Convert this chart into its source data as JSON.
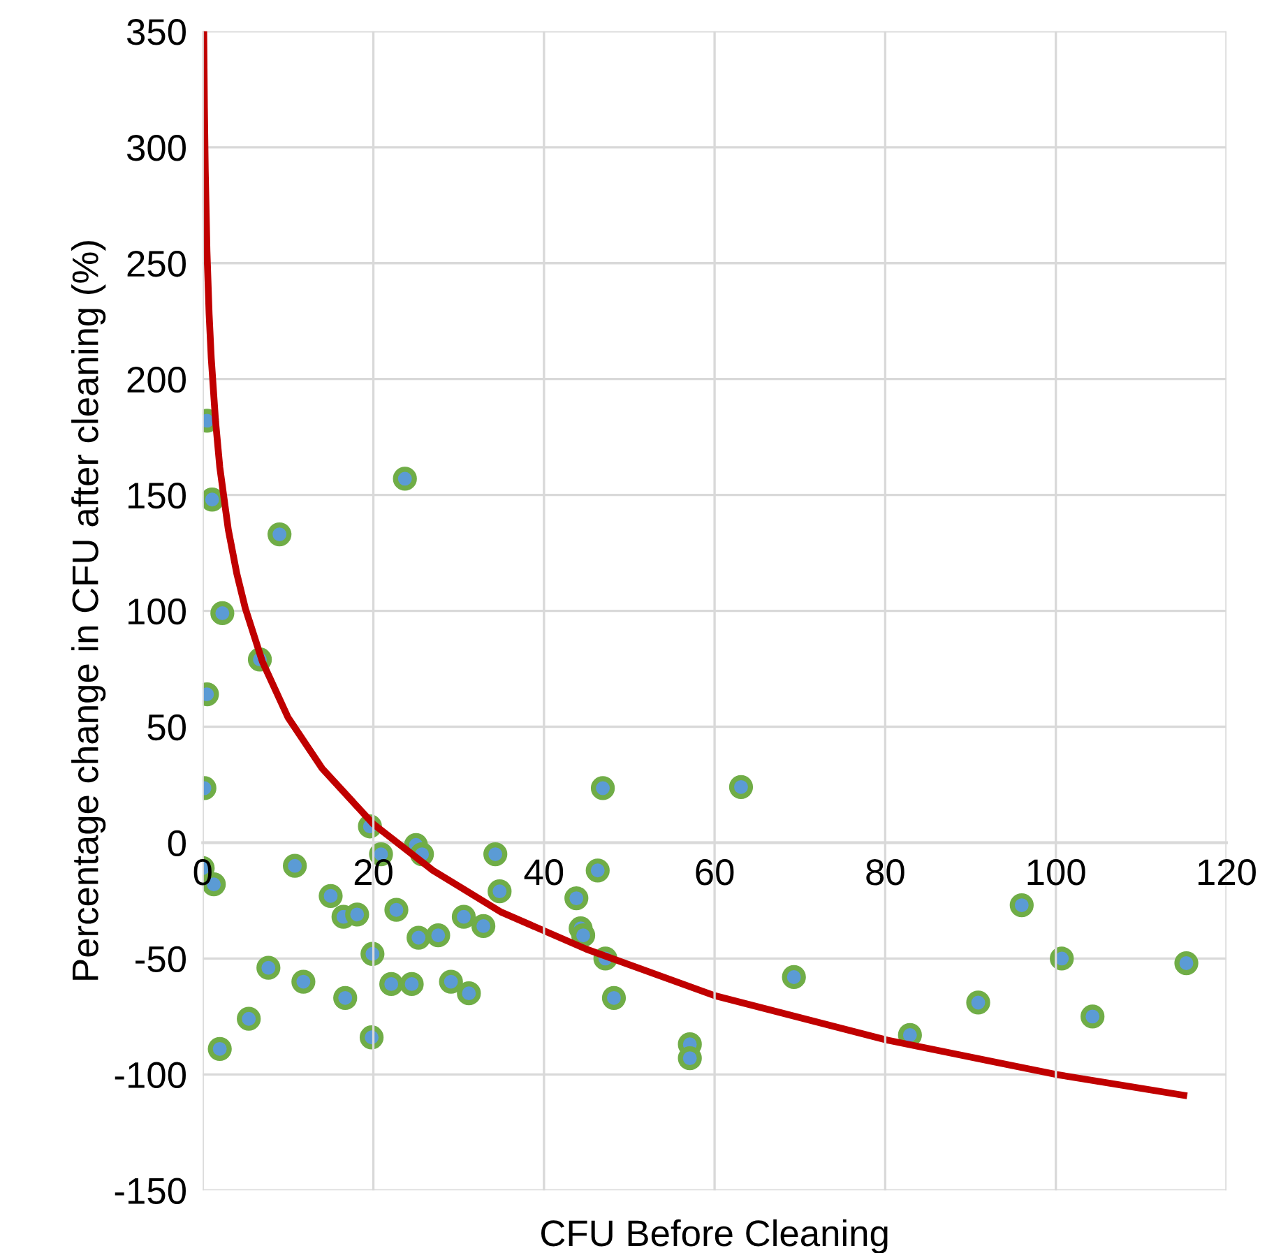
{
  "chart_data": {
    "type": "scatter",
    "xlabel": "CFU Before Cleaning",
    "ylabel": "Percentage change in CFU after cleaning (%)",
    "xlim": [
      0,
      120
    ],
    "xticks": [
      0,
      20,
      40,
      60,
      80,
      100,
      120
    ],
    "ylim": [
      -150,
      350
    ],
    "yticks": [
      -150,
      -100,
      -50,
      0,
      50,
      100,
      150,
      200,
      250,
      300,
      350
    ],
    "grid": true,
    "marker": "circle",
    "series": [
      {
        "color": "#5b9bd5",
        "x": [
          0.5,
          1.1,
          2.3,
          0.5,
          0.2,
          0,
          1.3,
          2.0,
          5.4,
          6.7,
          7.7,
          9.0,
          10.8,
          11.8,
          15.0,
          16.5,
          16.7,
          18.1,
          19.6,
          19.9,
          19.8,
          20.9,
          22.7,
          22.1,
          23.7,
          24.5,
          25.0,
          25.7,
          25.3,
          27.6,
          29.1,
          30.6,
          31.2,
          32.9,
          34.3,
          34.8,
          43.8,
          44.3,
          44.6,
          46.3,
          46.9,
          47.2,
          48.2,
          57.1,
          57.1,
          63.1,
          69.3,
          82.9,
          90.9,
          96.0,
          100.7,
          104.3,
          115.3
        ],
        "values": [
          182,
          148,
          99,
          64,
          23.5,
          -11,
          -18,
          -89,
          -76,
          79,
          -54,
          133,
          -10,
          -60,
          -23,
          -32,
          -67,
          -31,
          7,
          -48,
          -84,
          -5,
          -29,
          -61,
          157,
          -61,
          -1,
          -5,
          -41,
          -40,
          -60,
          -32,
          -65,
          -36,
          -5,
          -21,
          -24,
          -37,
          -40,
          -12,
          23.5,
          -50,
          -67,
          -87,
          -93,
          24,
          -58,
          -83,
          -69,
          -27,
          -50,
          -75,
          -52
        ]
      },
      {
        "type": "line",
        "color": "#c00000",
        "marker": "none",
        "line_style": "solid",
        "x": [
          0.12,
          0.2,
          0.3,
          0.5,
          0.75,
          1,
          1.5,
          2,
          3,
          4,
          5,
          7,
          10,
          14,
          20,
          27,
          35,
          45,
          60,
          80,
          100,
          115
        ],
        "values": [
          350,
          317,
          290,
          255,
          228,
          209,
          182,
          162,
          135,
          116,
          101,
          78,
          54,
          32,
          8,
          -12,
          -30,
          -46,
          -66,
          -85,
          -100,
          -109
        ]
      }
    ]
  }
}
